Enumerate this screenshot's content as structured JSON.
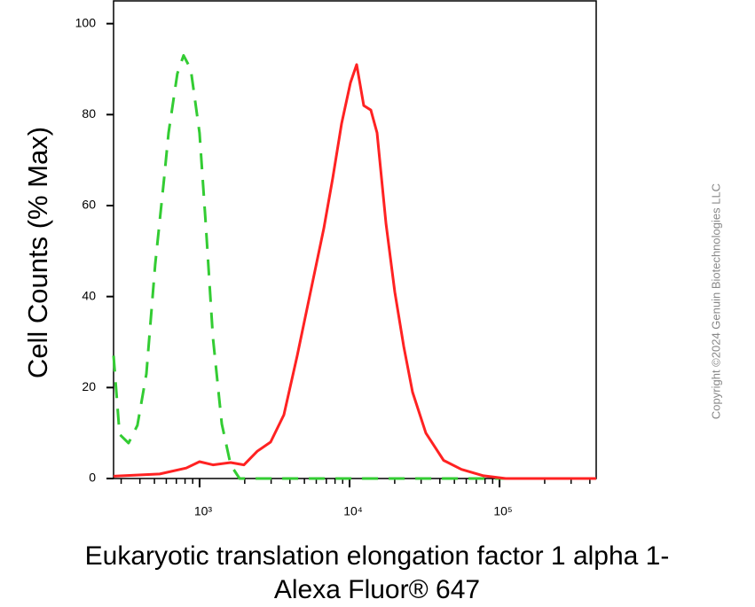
{
  "chart_data": {
    "type": "line",
    "y_label": "Cell Counts (% Max)",
    "x_label": [
      "Eukaryotic translation elongation factor 1 alpha 1-",
      "Alexa Fluor® 647"
    ],
    "watermark": "Copyright ©2024 Genuin Biotechnologies LLC",
    "xscale": "log",
    "xlim": [
      267,
      441000
    ],
    "ylim": [
      0,
      105
    ],
    "xticks": [
      {
        "value": 1000,
        "label": "10³"
      },
      {
        "value": 10000,
        "label": "10⁴"
      },
      {
        "value": 100000,
        "label": "10⁵"
      }
    ],
    "xminorticks": [
      300,
      400,
      500,
      600,
      700,
      800,
      900,
      2000,
      3000,
      4000,
      5000,
      6000,
      7000,
      8000,
      9000,
      20000,
      30000,
      40000,
      50000,
      60000,
      70000,
      80000,
      90000,
      200000,
      300000,
      400000
    ],
    "yticks": [
      0,
      20,
      40,
      60,
      80,
      100
    ],
    "series": [
      {
        "color": "#33cc33",
        "dash": true,
        "x": [
          267,
          293,
          336,
          385,
          442,
          506,
          580,
          621,
          711,
          782,
          873,
          1000,
          1100,
          1227,
          1406,
          1611,
          1846,
          441000
        ],
        "values": [
          27,
          9.7,
          7.8,
          11.7,
          23,
          47,
          66,
          76,
          89,
          93,
          90,
          76,
          56,
          31,
          12,
          3,
          0,
          0
        ]
      },
      {
        "color": "#ff2222",
        "dash": false,
        "x": [
          267,
          542,
          815,
          1000,
          1227,
          1611,
          1977,
          2424,
          2974,
          3648,
          4475,
          5490,
          6735,
          7721,
          8850,
          10140,
          11150,
          12440,
          13870,
          15250,
          17500,
          20040,
          22970,
          26310,
          32280,
          42390,
          55700,
          78170,
          109900,
          441000
        ],
        "values": [
          0.5,
          1,
          2.3,
          3.7,
          3,
          3.5,
          3,
          6,
          8,
          14,
          27,
          41,
          55,
          66,
          78,
          87,
          91,
          82,
          81,
          76,
          56,
          41,
          29,
          19,
          10,
          4,
          2,
          0.6,
          0,
          0
        ]
      }
    ]
  }
}
